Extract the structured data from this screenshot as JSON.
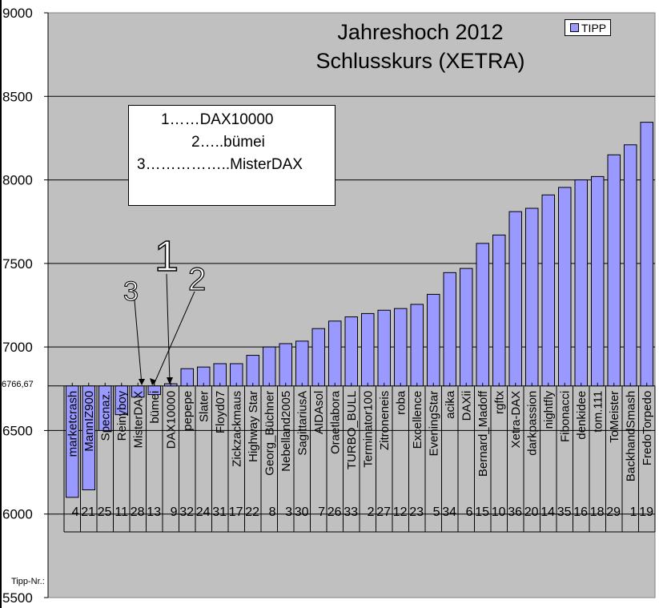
{
  "chart_data": {
    "type": "bar",
    "title": "Jahreshoch 2012 Schlusskurs (XETRA)",
    "title_lines": [
      "Jahreshoch 2012",
      "Schlusskurs (XETRA)"
    ],
    "xlabel": "",
    "ylabel": "",
    "ylim": [
      5500,
      9000
    ],
    "yticks": [
      5500,
      6000,
      6500,
      7000,
      7500,
      8000,
      8500,
      9000
    ],
    "ytick_labels": [
      "5500",
      "6000",
      "6500",
      "7000",
      "7500",
      "8000",
      "8500",
      "9000"
    ],
    "baseline": 6766.67,
    "baseline_label": "6766,67",
    "grid": true,
    "legend": {
      "position": "top-right",
      "entries": [
        "TIPP"
      ]
    },
    "series": [
      {
        "name": "TIPP",
        "color": "#9999ff"
      }
    ],
    "row_header": "Tipp-Nr.:",
    "categories": [
      "marketcrash",
      "MannIZ900",
      "Specnaz.",
      "Reinyboy",
      "MisterDAX",
      "bümei",
      "DAX10000",
      "pepepe",
      "Slater",
      "Floyd07",
      "Zickzackmaus",
      "Highway Star",
      "Georg_Büchner",
      "Nebelland2005",
      "SagittariusA",
      "AIDAsol",
      "Oraetlabora",
      "TURBO_BULL",
      "Terminator100",
      "Zitroneneis",
      "roba",
      "Excellence",
      "EveningStar",
      "acika",
      "DAXii",
      "Bernard_Madoff",
      "rgftx",
      "Xetra-DAX",
      "darkpassion",
      "nightfly",
      "Fibonacci",
      "denkidee",
      "tom.111",
      "ToMeister",
      "BackhandSmash",
      "FredoTorpedo"
    ],
    "tipp_nr": [
      "4",
      "21",
      "25",
      "11",
      "28",
      "13",
      "9",
      "32",
      "24",
      "31",
      "17",
      "22",
      "8",
      "3",
      "30",
      "7",
      "26",
      "33",
      "2",
      "27",
      "12",
      "23",
      "5",
      "34",
      "6",
      "15",
      "10",
      "36",
      "20",
      "14",
      "35",
      "16",
      "18",
      "29",
      "1",
      "19"
    ],
    "values": [
      6100,
      6145,
      6500,
      6595,
      6700,
      6715,
      6780,
      6870,
      6880,
      6900,
      6900,
      6950,
      7000,
      7020,
      7035,
      7110,
      7155,
      7180,
      7200,
      7220,
      7230,
      7255,
      7315,
      7445,
      7470,
      7620,
      7670,
      7810,
      7830,
      7910,
      7955,
      8000,
      8020,
      8150,
      8210,
      8345
    ]
  },
  "annotation": {
    "lines": [
      "1……DAX10000",
      "2…..bümei",
      "3……………..MisterDAX"
    ],
    "markers": [
      "1",
      "2",
      "3"
    ]
  },
  "colors": {
    "plot_bg": "#c0c0c0",
    "bar_fill": "#9999ff",
    "bar_stroke": "#000000",
    "grid": "#000000"
  }
}
